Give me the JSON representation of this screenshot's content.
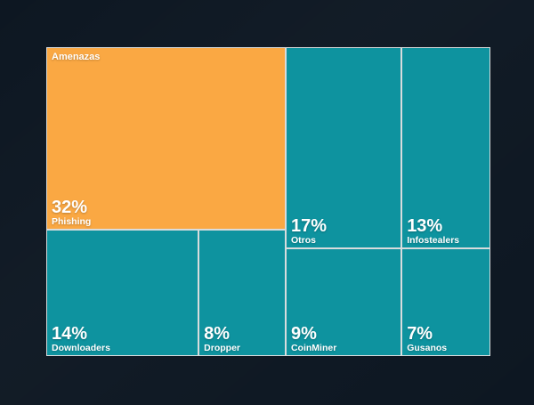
{
  "chart_data": {
    "type": "treemap",
    "series_name": "Amenazas",
    "unit": "%",
    "items": [
      {
        "label": "Phishing",
        "value": 32,
        "value_label": "32%",
        "color_role": "highlight"
      },
      {
        "label": "Otros",
        "value": 17,
        "value_label": "17%",
        "color_role": "tile"
      },
      {
        "label": "Infostealers",
        "value": 13,
        "value_label": "13%",
        "color_role": "tile"
      },
      {
        "label": "Downloaders",
        "value": 14,
        "value_label": "14%",
        "color_role": "tile"
      },
      {
        "label": "Dropper",
        "value": 8,
        "value_label": "8%",
        "color_role": "tile"
      },
      {
        "label": "CoinMiner",
        "value": 9,
        "value_label": "9%",
        "color_role": "tile"
      },
      {
        "label": "Gusanos",
        "value": 7,
        "value_label": "7%",
        "color_role": "tile"
      }
    ],
    "colors": {
      "highlight": "#faa843",
      "tile": "#0e939f",
      "grid": "#d8dcdd",
      "label": "#ffffff",
      "background": "#0d1722"
    },
    "legend": "none",
    "layout_hint": "squarified treemap; largest tile (Phishing) top-left in accent orange, others teal; labels bottom-left of each tile; series name top-left of first tile"
  }
}
